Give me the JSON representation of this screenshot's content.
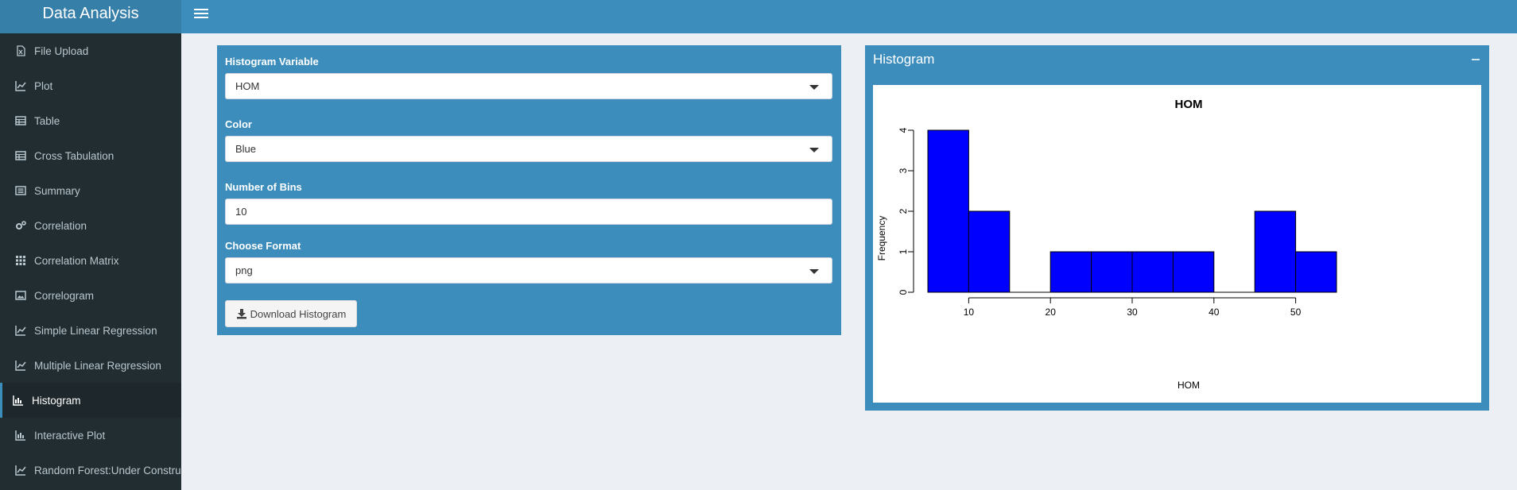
{
  "app": {
    "title": "Data Analysis"
  },
  "sidebar": {
    "items": [
      {
        "label": "File Upload",
        "icon": "file-excel-icon"
      },
      {
        "label": "Plot",
        "icon": "line-chart-icon"
      },
      {
        "label": "Table",
        "icon": "table-icon"
      },
      {
        "label": "Cross Tabulation",
        "icon": "table-icon"
      },
      {
        "label": "Summary",
        "icon": "list-alt-icon"
      },
      {
        "label": "Correlation",
        "icon": "cogs-icon"
      },
      {
        "label": "Correlation Matrix",
        "icon": "grid-icon"
      },
      {
        "label": "Correlogram",
        "icon": "image-icon"
      },
      {
        "label": "Simple Linear Regression",
        "icon": "line-chart-icon"
      },
      {
        "label": "Multiple Linear Regression",
        "icon": "line-chart-icon"
      },
      {
        "label": "Histogram",
        "icon": "bar-chart-icon",
        "active": true
      },
      {
        "label": "Interactive Plot",
        "icon": "bar-chart-icon"
      },
      {
        "label": "Random Forest:Under Construction",
        "icon": "line-chart-icon"
      }
    ]
  },
  "controls": {
    "variable_label": "Histogram Variable",
    "variable_value": "HOM",
    "color_label": "Color",
    "color_value": "Blue",
    "bins_label": "Number of Bins",
    "bins_value": "10",
    "format_label": "Choose Format",
    "format_value": "png",
    "download_label": "Download Histogram"
  },
  "panel": {
    "title": "Histogram"
  },
  "colors": {
    "header": "#3c8dbc",
    "logo": "#367fa9",
    "sidebar": "#222d32",
    "bar_fill": "#0000ff"
  },
  "chart_data": {
    "type": "bar",
    "title": "HOM",
    "xlabel": "HOM",
    "ylabel": "Frequency",
    "bins": [
      [
        5,
        10
      ],
      [
        10,
        15
      ],
      [
        15,
        20
      ],
      [
        20,
        25
      ],
      [
        25,
        30
      ],
      [
        30,
        35
      ],
      [
        35,
        40
      ],
      [
        40,
        45
      ],
      [
        45,
        50
      ],
      [
        50,
        55
      ]
    ],
    "values": [
      4,
      2,
      0,
      1,
      1,
      1,
      1,
      0,
      2,
      1
    ],
    "xticks": [
      10,
      20,
      30,
      40,
      50
    ],
    "yticks": [
      0,
      1,
      2,
      3,
      4
    ],
    "xlim": [
      5,
      55
    ],
    "ylim": [
      0,
      4
    ],
    "bar_color": "#0000ff"
  }
}
